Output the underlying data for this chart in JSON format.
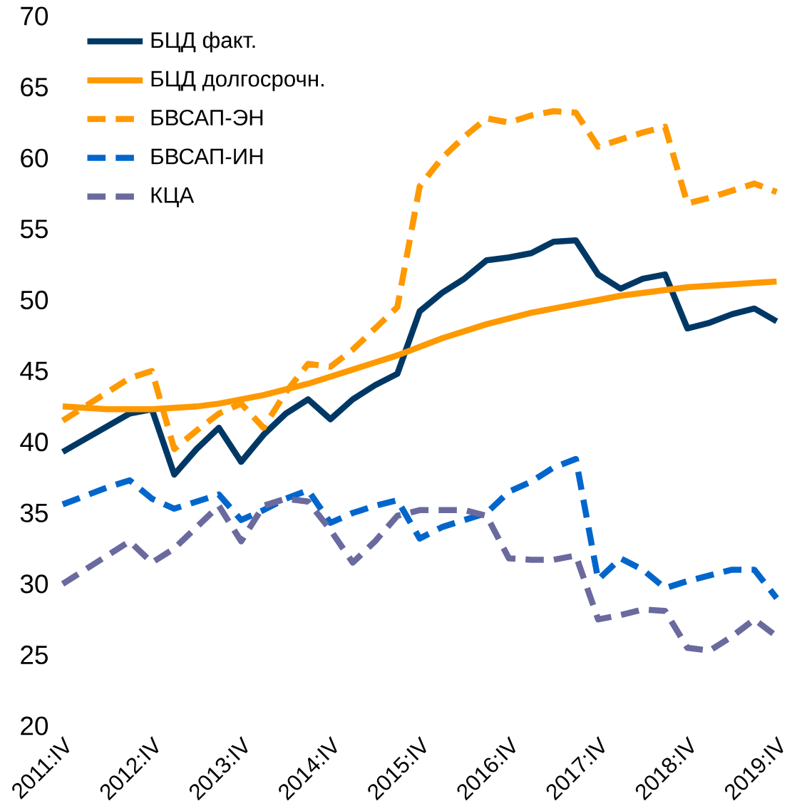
{
  "chart_data": {
    "type": "line",
    "categories": [
      "2011:IV",
      null,
      null,
      null,
      "2012:IV",
      null,
      null,
      null,
      "2013:IV",
      null,
      null,
      null,
      "2014:IV",
      null,
      null,
      null,
      "2015:IV",
      null,
      null,
      null,
      "2016:IV",
      null,
      null,
      null,
      "2017:IV",
      null,
      null,
      null,
      "2018:IV",
      null,
      null,
      null,
      "2019:IV"
    ],
    "ylim": [
      20,
      70
    ],
    "yticks": [
      20,
      25,
      30,
      35,
      40,
      45,
      50,
      55,
      60,
      65,
      70
    ],
    "legend": "top left",
    "grid": false,
    "marker": "none",
    "series": [
      {
        "name": "БЦД факт.",
        "color": "#003865",
        "line_style": "solid",
        "values": [
          39.3,
          40.2,
          41.1,
          42,
          42.3,
          37.7,
          39.5,
          41,
          38.6,
          40.5,
          42,
          43,
          41.6,
          43,
          44,
          44.8,
          49.2,
          50.5,
          51.5,
          52.8,
          53,
          53.3,
          54.1,
          54.2,
          51.8,
          50.8,
          51.5,
          51.8,
          48,
          48.4,
          49,
          49.4,
          48.5
        ]
      },
      {
        "name": "БЦД долгосрочн.",
        "color": "#ff9900",
        "line_style": "solid",
        "values": [
          42.5,
          42.4,
          42.3,
          42.3,
          42.3,
          42.4,
          42.5,
          42.7,
          43,
          43.3,
          43.7,
          44.1,
          44.6,
          45.1,
          45.6,
          46.1,
          46.7,
          47.3,
          47.8,
          48.3,
          48.7,
          49.1,
          49.4,
          49.7,
          50,
          50.3,
          50.5,
          50.7,
          50.9,
          51,
          51.1,
          51.2,
          51.3
        ]
      },
      {
        "name": "БВСАП-ЭН",
        "color": "#ff9900",
        "line_style": "dashed",
        "values": [
          41.5,
          42.5,
          43.5,
          44.5,
          45,
          39.5,
          40.8,
          42,
          42.7,
          41,
          43.5,
          45.5,
          45.3,
          46.5,
          48,
          49.5,
          58,
          60,
          61.5,
          62.8,
          62.5,
          63,
          63.3,
          63.2,
          60.8,
          61.3,
          61.8,
          62.2,
          56.8,
          57.2,
          57.7,
          58.2,
          57.6
        ]
      },
      {
        "name": "БВСАП-ИН",
        "color": "#0066cc",
        "line_style": "dashed",
        "values": [
          35.6,
          36.2,
          36.8,
          37.3,
          36,
          35.3,
          35.8,
          36.3,
          34.5,
          35.2,
          36,
          36.6,
          34.3,
          35,
          35.5,
          35.9,
          33.2,
          34,
          34.5,
          35,
          36.5,
          37.2,
          38.2,
          38.8,
          30.3,
          31.8,
          31,
          29.7,
          30.2,
          30.6,
          31,
          31,
          29
        ]
      },
      {
        "name": "КЦА",
        "color": "#6a6a9e",
        "line_style": "dashed",
        "values": [
          30,
          31,
          32,
          33,
          31.5,
          32.5,
          34,
          35.5,
          33,
          35.5,
          36,
          35.8,
          33.8,
          31.5,
          33,
          34.8,
          35.2,
          35.2,
          35.2,
          34.8,
          31.8,
          31.7,
          31.7,
          32,
          27.5,
          27.8,
          28.2,
          28.1,
          25.5,
          25.3,
          26.3,
          27.5,
          26.3
        ]
      }
    ]
  }
}
